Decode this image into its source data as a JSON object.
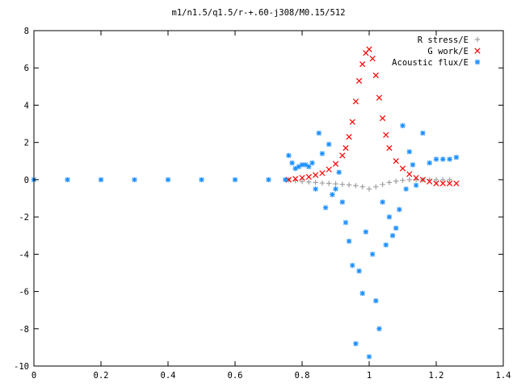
{
  "chart_data": {
    "type": "scatter",
    "title": "m1/n1.5/q1.5/r-+.60-j308/M0.15/512",
    "xlabel": "",
    "ylabel": "",
    "xlim": [
      0,
      1.4
    ],
    "ylim": [
      -10,
      8
    ],
    "x_ticks": [
      "0",
      "0.2",
      "0.4",
      "0.6",
      "0.8",
      "1",
      "1.2",
      "1.4"
    ],
    "y_ticks": [
      "-10",
      "-8",
      "-6",
      "-4",
      "-2",
      "0",
      "2",
      "4",
      "6",
      "8"
    ],
    "grid": false,
    "legend_position": "top-right",
    "series": [
      {
        "name": "R stress/E",
        "marker": "plus",
        "color": "#a0a0a0",
        "x": [
          0.76,
          0.78,
          0.8,
          0.82,
          0.84,
          0.86,
          0.88,
          0.9,
          0.92,
          0.94,
          0.96,
          0.98,
          1.0,
          1.02,
          1.04,
          1.06,
          1.08,
          1.1,
          1.12,
          1.14,
          1.16,
          1.18,
          1.2,
          1.22,
          1.24
        ],
        "y": [
          0.0,
          -0.05,
          -0.1,
          -0.12,
          -0.15,
          -0.18,
          -0.2,
          -0.22,
          -0.25,
          -0.28,
          -0.32,
          -0.38,
          -0.5,
          -0.38,
          -0.25,
          -0.15,
          -0.08,
          -0.03,
          0.0,
          0.0,
          0.0,
          0.0,
          0.0,
          0.0,
          0.0
        ]
      },
      {
        "name": "G work/E",
        "marker": "cross",
        "color": "#ff0000",
        "x": [
          0.76,
          0.78,
          0.8,
          0.82,
          0.84,
          0.86,
          0.88,
          0.9,
          0.92,
          0.93,
          0.94,
          0.95,
          0.96,
          0.97,
          0.98,
          0.99,
          1.0,
          1.01,
          1.02,
          1.03,
          1.04,
          1.05,
          1.06,
          1.08,
          1.1,
          1.12,
          1.14,
          1.16,
          1.18,
          1.2,
          1.22,
          1.24,
          1.26
        ],
        "y": [
          0.0,
          0.05,
          0.1,
          0.15,
          0.25,
          0.35,
          0.55,
          0.85,
          1.3,
          1.7,
          2.3,
          3.1,
          4.2,
          5.3,
          6.2,
          6.8,
          7.0,
          6.5,
          5.6,
          4.4,
          3.3,
          2.4,
          1.7,
          1.0,
          0.6,
          0.3,
          0.1,
          0.0,
          -0.1,
          -0.2,
          -0.2,
          -0.2,
          -0.2
        ]
      },
      {
        "name": "Acoustic flux/E",
        "marker": "star",
        "color": "#1e90ff",
        "x": [
          0.0,
          0.1,
          0.2,
          0.3,
          0.4,
          0.5,
          0.6,
          0.7,
          0.75,
          0.76,
          0.77,
          0.78,
          0.79,
          0.8,
          0.81,
          0.82,
          0.83,
          0.84,
          0.85,
          0.86,
          0.87,
          0.88,
          0.89,
          0.9,
          0.91,
          0.92,
          0.93,
          0.94,
          0.95,
          0.96,
          0.97,
          0.98,
          0.99,
          1.0,
          1.01,
          1.02,
          1.03,
          1.04,
          1.05,
          1.06,
          1.07,
          1.08,
          1.09,
          1.1,
          1.11,
          1.12,
          1.13,
          1.14,
          1.16,
          1.18,
          1.2,
          1.22,
          1.24,
          1.26
        ],
        "y": [
          0.0,
          0.0,
          0.0,
          0.0,
          0.0,
          0.0,
          0.0,
          0.0,
          0.0,
          1.3,
          0.9,
          0.6,
          0.7,
          0.8,
          0.8,
          0.7,
          0.9,
          -0.5,
          2.5,
          1.4,
          -1.5,
          1.9,
          -0.8,
          -0.5,
          0.4,
          -1.2,
          -2.3,
          -3.3,
          -4.6,
          -8.8,
          -4.9,
          -6.1,
          -2.8,
          -9.5,
          -4.0,
          -6.5,
          -8.0,
          -1.2,
          -3.5,
          -2.0,
          -3.0,
          -2.6,
          -1.6,
          2.9,
          -0.5,
          1.5,
          0.8,
          -0.3,
          2.5,
          0.9,
          1.1,
          1.1,
          1.1,
          1.2
        ]
      }
    ]
  }
}
